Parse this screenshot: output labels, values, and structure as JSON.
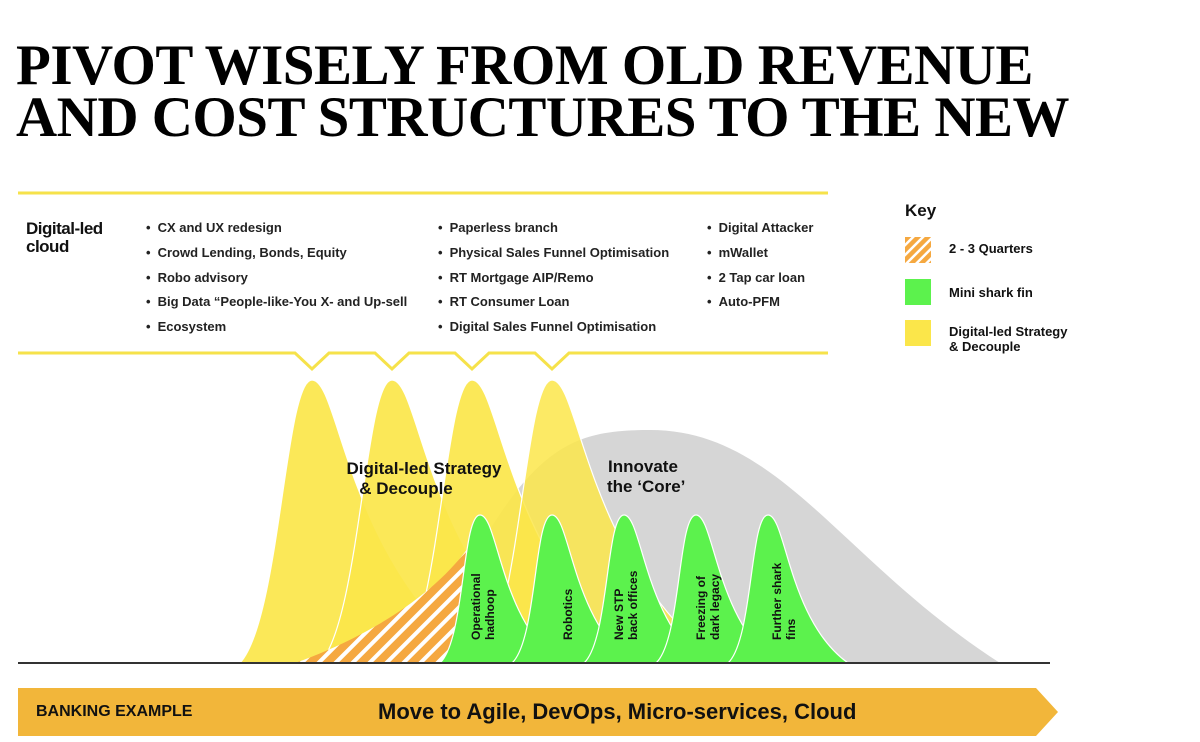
{
  "title": {
    "line1": "PIVOT WISELY FROM OLD REVENUE",
    "line2": "AND COST STRUCTURES TO THE NEW"
  },
  "cloud": {
    "label_line1": "Digital-led",
    "label_line2": "cloud",
    "columns": [
      [
        "CX and UX redesign",
        "Crowd Lending, Bonds, Equity",
        "Robo advisory",
        "Big Data “People-like-You X- and Up-sell",
        "Ecosystem"
      ],
      [
        "Paperless branch",
        "Physical Sales Funnel Optimisation",
        "RT Mortgage AIP/Remo",
        "RT Consumer Loan",
        "Digital Sales Funnel Optimisation"
      ],
      [
        "Digital Attacker",
        "mWallet",
        "2 Tap car loan",
        "Auto-PFM"
      ]
    ]
  },
  "key": {
    "title": "Key",
    "items": [
      {
        "label": "2 - 3 Quarters",
        "swatch": "hatch",
        "color": "#f5a840"
      },
      {
        "label": "Mini shark fin",
        "swatch": "green",
        "color": "#5cf24d"
      },
      {
        "label_line1": "Digital-led Strategy",
        "label_line2": "& Decouple",
        "swatch": "yellow",
        "color": "#fbe64a"
      }
    ]
  },
  "diagram": {
    "strategy_label_line1": "Digital-led Strategy",
    "strategy_label_line2": "& Decouple",
    "core_label_line1": "Innovate",
    "core_label_line2": "the ‘Core’",
    "fin_labels": [
      {
        "line1": "Operational",
        "line2": "hadhoop"
      },
      {
        "line1": "Robotics",
        "line2": ""
      },
      {
        "line1": "New STP",
        "line2": "back offices"
      },
      {
        "line1": "Freezing of",
        "line2": "dark legacy"
      },
      {
        "line1": "Further shark",
        "line2": "fins"
      }
    ],
    "colors": {
      "yellow": "#fbe64a",
      "green": "#5cf24d",
      "grey": "#d6d6d6",
      "orange": "#f5a840"
    }
  },
  "banner": {
    "left_label": "BANKING EXAMPLE",
    "main_label": "Move to Agile, DevOps, Micro-services, Cloud",
    "color": "#f2b63a"
  }
}
